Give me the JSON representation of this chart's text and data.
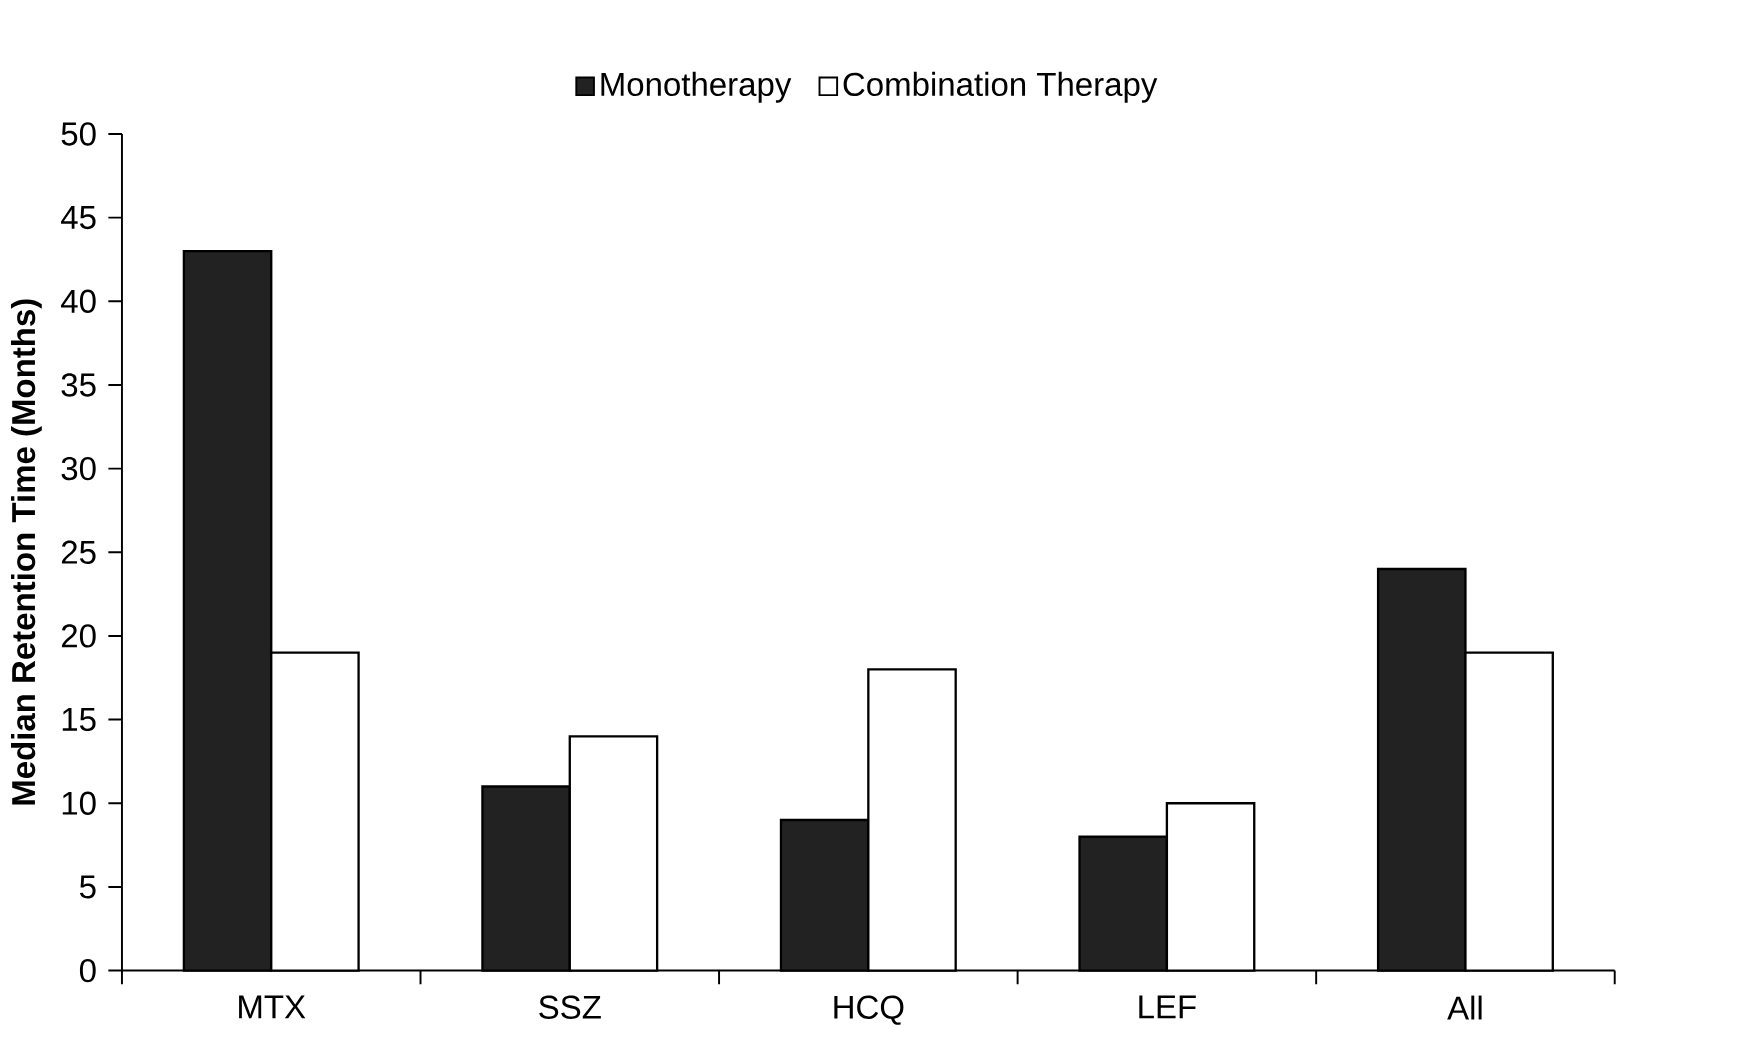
{
  "chart_data": {
    "type": "bar",
    "ylabel": "Median Retention Time (Months)",
    "categories": [
      "MTX",
      "SSZ",
      "HCQ",
      "LEF",
      "All"
    ],
    "series": [
      {
        "name": "Monotherapy",
        "color": "#222222",
        "values": [
          43,
          11,
          9,
          8,
          24
        ]
      },
      {
        "name": "Combination Therapy",
        "color": "#ffffff",
        "values": [
          19,
          14,
          18,
          10,
          19
        ]
      }
    ],
    "ylim": [
      0,
      50
    ],
    "yticks": [
      0,
      5,
      10,
      15,
      20,
      25,
      30,
      35,
      40,
      45,
      50
    ],
    "legend": "top",
    "grid": false
  }
}
